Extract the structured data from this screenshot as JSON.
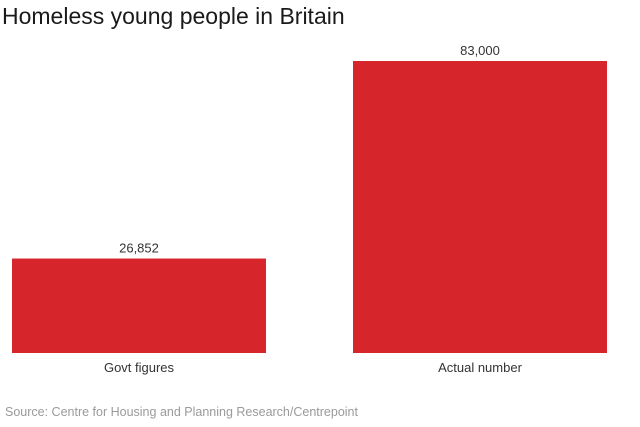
{
  "chart_data": {
    "type": "bar",
    "title": "Homeless young people in Britain",
    "categories": [
      "Govt figures",
      "Actual number"
    ],
    "values": [
      26852,
      83000
    ],
    "value_labels": [
      "26,852",
      "83,000"
    ],
    "xlabel": "",
    "ylabel": "",
    "ylim": [
      0,
      83000
    ],
    "grid": false,
    "legend": "none",
    "bar_color": "#d7262b",
    "source": "Source: Centre for Housing and Planning Research/Centrepoint"
  }
}
